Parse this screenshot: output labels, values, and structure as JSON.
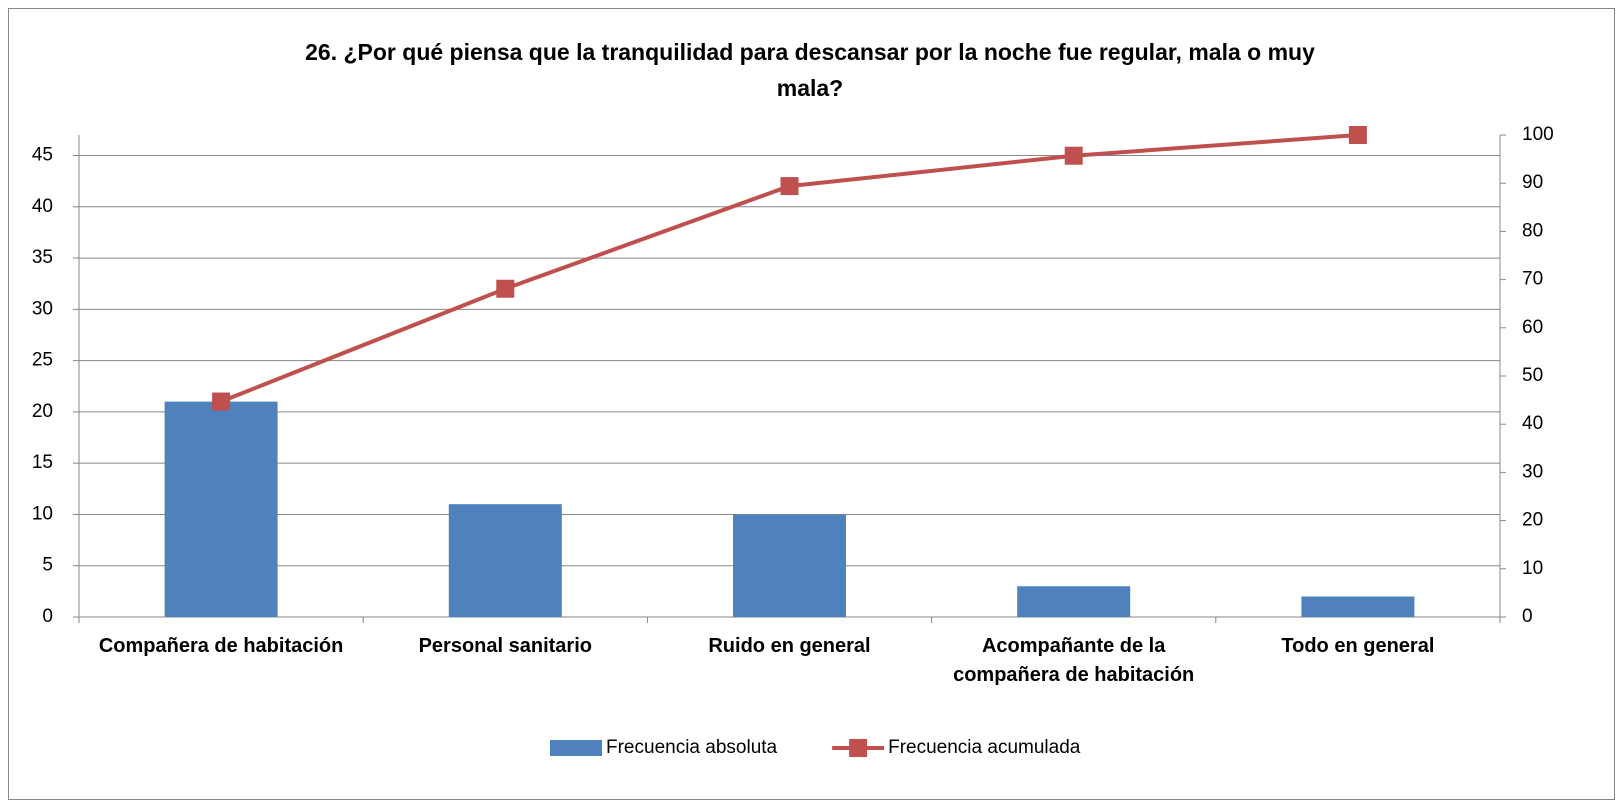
{
  "chart_data": {
    "type": "pareto",
    "title": "26. ¿Por qué piensa que la tranquilidad para descansar por la noche fue regular, mala o muy mala?",
    "categories": [
      "Compañera de habitación",
      "Personal sanitario",
      "Ruido en general",
      "Acompañante de la compañera de habitación",
      "Todo en general"
    ],
    "series": [
      {
        "name": "Frecuencia absoluta",
        "type": "bar",
        "color": "#4f81bd",
        "values": [
          21,
          11,
          10,
          3,
          2
        ]
      },
      {
        "name": "Frecuencia acumulada",
        "type": "line",
        "color": "#c0504d",
        "axis": "y2",
        "values": [
          44.7,
          68.1,
          89.4,
          95.7,
          100
        ]
      }
    ],
    "ylim": [
      0,
      47
    ],
    "yticks": [
      0,
      5,
      10,
      15,
      20,
      25,
      30,
      35,
      40,
      45
    ],
    "y2lim": [
      0,
      100
    ],
    "y2ticks": [
      0,
      10,
      20,
      30,
      40,
      50,
      60,
      70,
      80,
      90,
      100
    ],
    "grid": true,
    "legend": "bottom"
  }
}
